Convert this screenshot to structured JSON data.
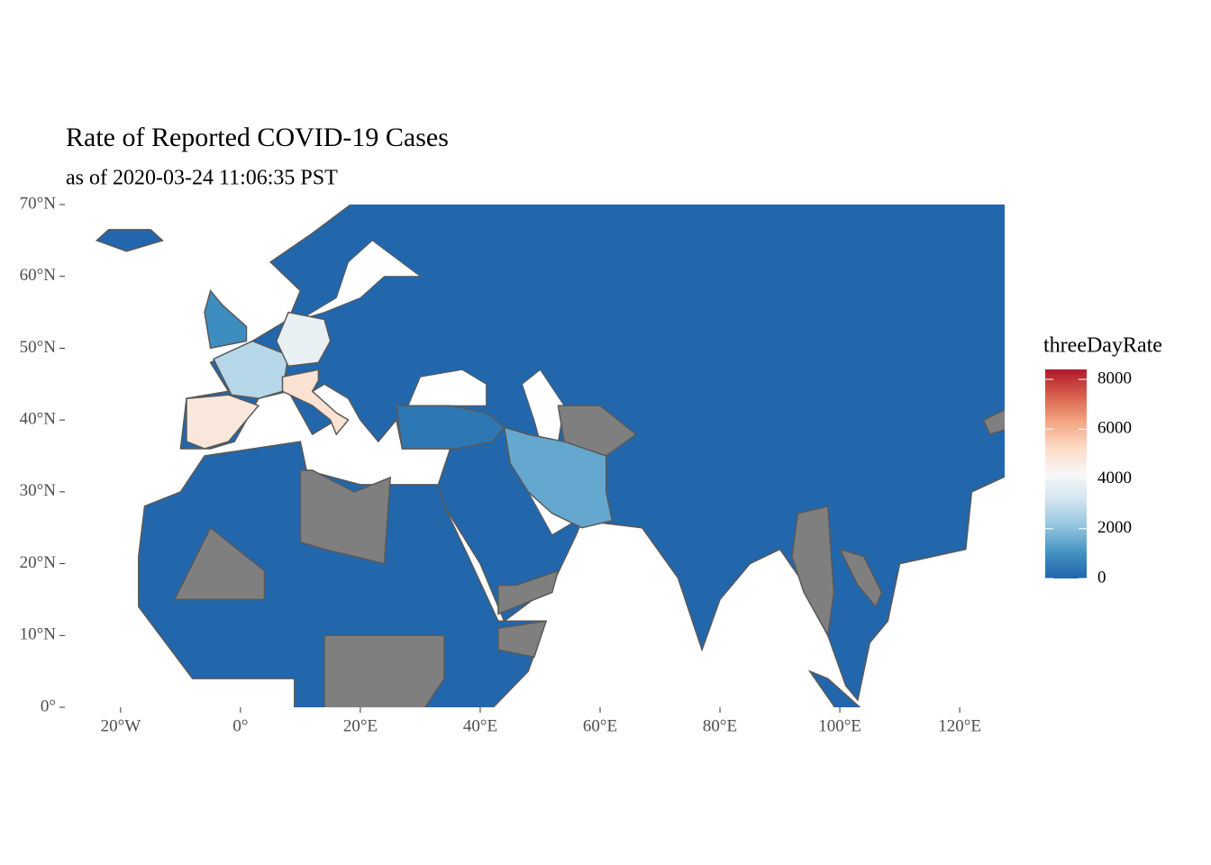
{
  "chart_data": {
    "type": "choropleth",
    "title": "Rate of Reported COVID-19 Cases",
    "subtitle": "as of 2020-03-24 11:06:35 PST",
    "legend_title": "threeDayRate",
    "xlim": [
      -29.3,
      127.5
    ],
    "ylim": [
      0,
      70
    ],
    "xticks": [
      {
        "value": -20,
        "label": "20°W"
      },
      {
        "value": 0,
        "label": "0°"
      },
      {
        "value": 20,
        "label": "20°E"
      },
      {
        "value": 40,
        "label": "40°E"
      },
      {
        "value": 60,
        "label": "60°E"
      },
      {
        "value": 80,
        "label": "80°E"
      },
      {
        "value": 100,
        "label": "100°E"
      },
      {
        "value": 120,
        "label": "120°E"
      }
    ],
    "yticks": [
      {
        "value": 0,
        "label": "0°"
      },
      {
        "value": 10,
        "label": "10°N"
      },
      {
        "value": 20,
        "label": "20°N"
      },
      {
        "value": 30,
        "label": "30°N"
      },
      {
        "value": 40,
        "label": "40°N"
      },
      {
        "value": 50,
        "label": "50°N"
      },
      {
        "value": 60,
        "label": "60°N"
      },
      {
        "value": 70,
        "label": "70°N"
      }
    ],
    "clim": [
      0,
      8400
    ],
    "cticks": [
      0,
      2000,
      4000,
      6000,
      8000
    ],
    "palette": [
      "#2166ac",
      "#4393c3",
      "#92c5de",
      "#d1e5f0",
      "#f7f7f7",
      "#fddbc7",
      "#f4a582",
      "#d6604d",
      "#b2182b"
    ],
    "na_color": "#7f7f7f",
    "regions": {
      "values": [
        20,
        20,
        4800,
        2700,
        3800,
        5000,
        900,
        1500,
        400,
        null,
        null,
        null,
        null,
        null,
        null,
        null,
        null,
        null,
        30,
        20
      ]
    }
  }
}
